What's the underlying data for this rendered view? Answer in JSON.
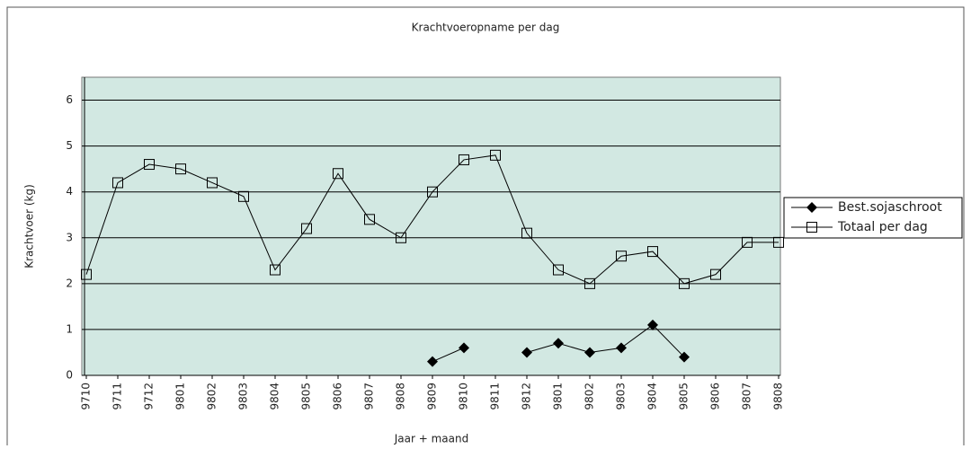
{
  "chart_data": {
    "type": "line",
    "title": "Krachtvoeropname per dag",
    "x_label": "Jaar + maand",
    "y_label": "Krachtvoer (kg)",
    "categories": [
      "9710",
      "9711",
      "9712",
      "9801",
      "9802",
      "9803",
      "9804",
      "9805",
      "9806",
      "9807",
      "9808",
      "9809",
      "9810",
      "9811",
      "9812",
      "9801",
      "9802",
      "9803",
      "9804",
      "9805",
      "9806",
      "9807",
      "9808"
    ],
    "series": [
      {
        "name": "Best.sojaschroot",
        "color": "#000000",
        "marker": "diamond",
        "values": [
          null,
          null,
          null,
          null,
          null,
          null,
          null,
          null,
          null,
          null,
          null,
          0.3,
          0.6,
          null,
          0.5,
          0.7,
          0.5,
          0.6,
          1.1,
          0.4,
          null,
          null,
          null
        ]
      },
      {
        "name": "Totaal per dag",
        "color": "#000000",
        "marker": "square",
        "values": [
          2.2,
          4.2,
          4.6,
          4.5,
          4.2,
          3.9,
          2.3,
          3.2,
          4.4,
          3.4,
          3.0,
          4.0,
          4.7,
          4.8,
          3.1,
          2.3,
          2.0,
          2.6,
          2.7,
          2.0,
          2.2,
          2.9,
          2.9
        ]
      }
    ],
    "ylim": [
      0,
      6.5
    ],
    "yticks": [
      0,
      1,
      2,
      3,
      4,
      5,
      6
    ],
    "grid": true,
    "legend": "right",
    "background": "#d2e8e2"
  }
}
